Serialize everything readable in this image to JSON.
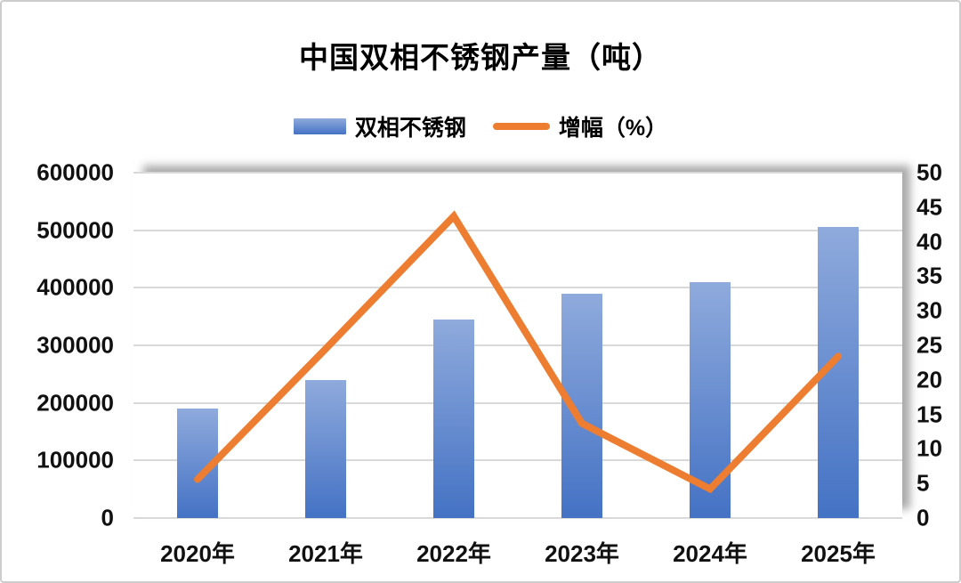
{
  "title": "中国双相不锈钢产量（吨）",
  "legend": {
    "bar_label": "双相不锈钢",
    "line_label": "增幅（%）"
  },
  "chart_data": {
    "type": "combo",
    "title": "中国双相不锈钢产量（吨）",
    "categories": [
      "2020年",
      "2021年",
      "2022年",
      "2023年",
      "2024年",
      "2025年"
    ],
    "series": [
      {
        "name": "双相不锈钢",
        "type": "bar",
        "axis": "left",
        "values": [
          190000,
          240000,
          345000,
          390000,
          410000,
          505000
        ]
      },
      {
        "name": "增幅（%）",
        "type": "line",
        "axis": "right",
        "values": [
          5.6,
          24.5,
          43.7,
          13.7,
          4.2,
          23.4
        ]
      }
    ],
    "left_axis": {
      "min": 0,
      "max": 600000,
      "step": 100000,
      "tick_labels": [
        "600000",
        "500000",
        "400000",
        "300000",
        "200000",
        "100000",
        "0"
      ]
    },
    "right_axis": {
      "min": 0,
      "max": 50,
      "step": 5,
      "tick_labels": [
        "50",
        "45",
        "40",
        "35",
        "30",
        "25",
        "20",
        "15",
        "10",
        "5",
        "0"
      ]
    },
    "grid": true,
    "legend_position": "top"
  },
  "colors": {
    "bar_gradient_top": "#8FAADC",
    "bar_gradient_bottom": "#4472C4",
    "line": "#ED7D31",
    "gridline": "#D9D9D9",
    "axis_text": "#111111",
    "plot_shadow": "#7D7D7D",
    "frame_border": "#CCCCCC"
  }
}
